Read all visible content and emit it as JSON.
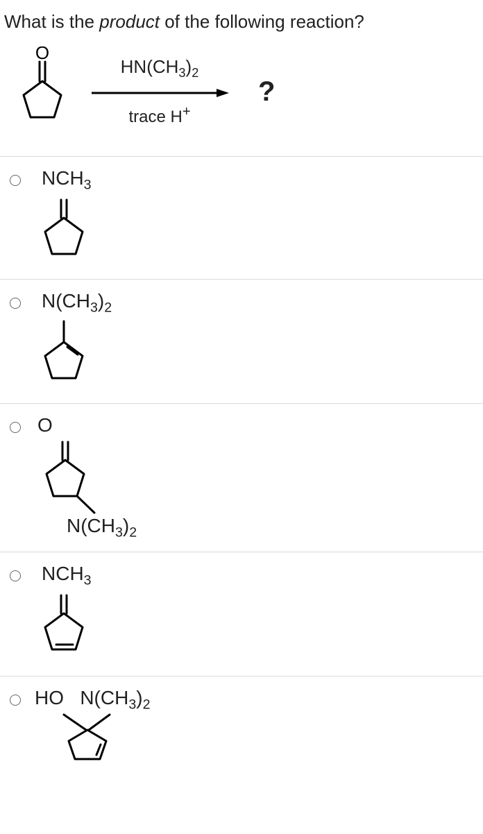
{
  "question_prefix": "What is the ",
  "question_em": "product",
  "question_suffix": " of the following reaction?",
  "reagent_html": "HN(CH<sub>3</sub>)<sub>2</sub>",
  "catalyst_html": "trace H<sup>+</sup>",
  "product_placeholder": "?",
  "options": {
    "a": "NCH<sub>3</sub>",
    "b": "N(CH<sub>3</sub>)<sub>2</sub>",
    "c_top": "O",
    "c_bottom": "N(CH<sub>3</sub>)<sub>2</sub>",
    "d": "NCH<sub>3</sub>",
    "e": "HO&nbsp;&nbsp;&nbsp;N(CH<sub>3</sub>)<sub>2</sub>"
  },
  "style": {
    "text_color": "#212121",
    "border_color": "#d9d9d9",
    "stroke": "#000000",
    "stroke_width": 2.5,
    "question_fontsize": 26,
    "label_fontsize": 28,
    "qmark_fontsize": 40,
    "radio_border": "#666666",
    "bg": "#ffffff"
  }
}
